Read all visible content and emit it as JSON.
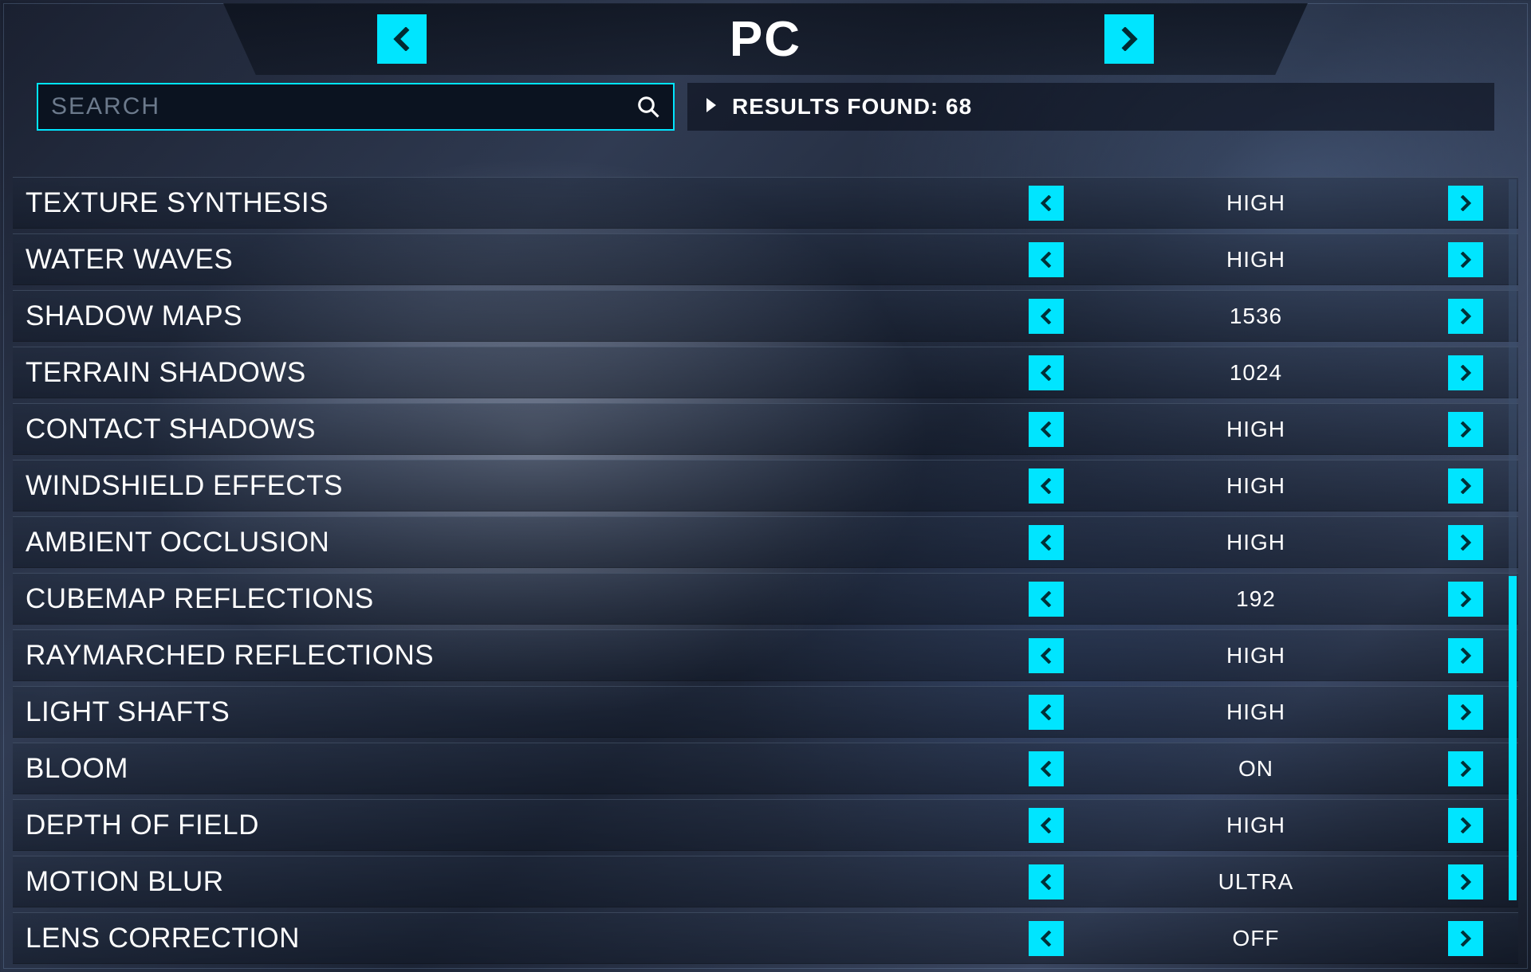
{
  "colors": {
    "accent": "#00e5ff",
    "panel_dark": "#0b1320",
    "text": "#ffffff",
    "placeholder": "#6c7a8c"
  },
  "header": {
    "title": "PC"
  },
  "search": {
    "placeholder": "SEARCH",
    "results_label": "RESULTS FOUND: 68"
  },
  "scrollbar": {
    "thumb_top_pct": 55,
    "thumb_height_pct": 45
  },
  "settings": [
    {
      "label": "TEXTURE SYNTHESIS",
      "value": "HIGH"
    },
    {
      "label": "WATER WAVES",
      "value": "HIGH"
    },
    {
      "label": "SHADOW MAPS",
      "value": "1536"
    },
    {
      "label": "TERRAIN SHADOWS",
      "value": "1024"
    },
    {
      "label": "CONTACT SHADOWS",
      "value": "HIGH"
    },
    {
      "label": "WINDSHIELD EFFECTS",
      "value": "HIGH"
    },
    {
      "label": "AMBIENT OCCLUSION",
      "value": "HIGH"
    },
    {
      "label": "CUBEMAP REFLECTIONS",
      "value": "192"
    },
    {
      "label": "RAYMARCHED REFLECTIONS",
      "value": "HIGH"
    },
    {
      "label": "LIGHT SHAFTS",
      "value": "HIGH"
    },
    {
      "label": "BLOOM",
      "value": "ON"
    },
    {
      "label": "DEPTH OF FIELD",
      "value": "HIGH"
    },
    {
      "label": "MOTION BLUR",
      "value": "ULTRA"
    },
    {
      "label": "LENS CORRECTION",
      "value": "OFF"
    }
  ]
}
